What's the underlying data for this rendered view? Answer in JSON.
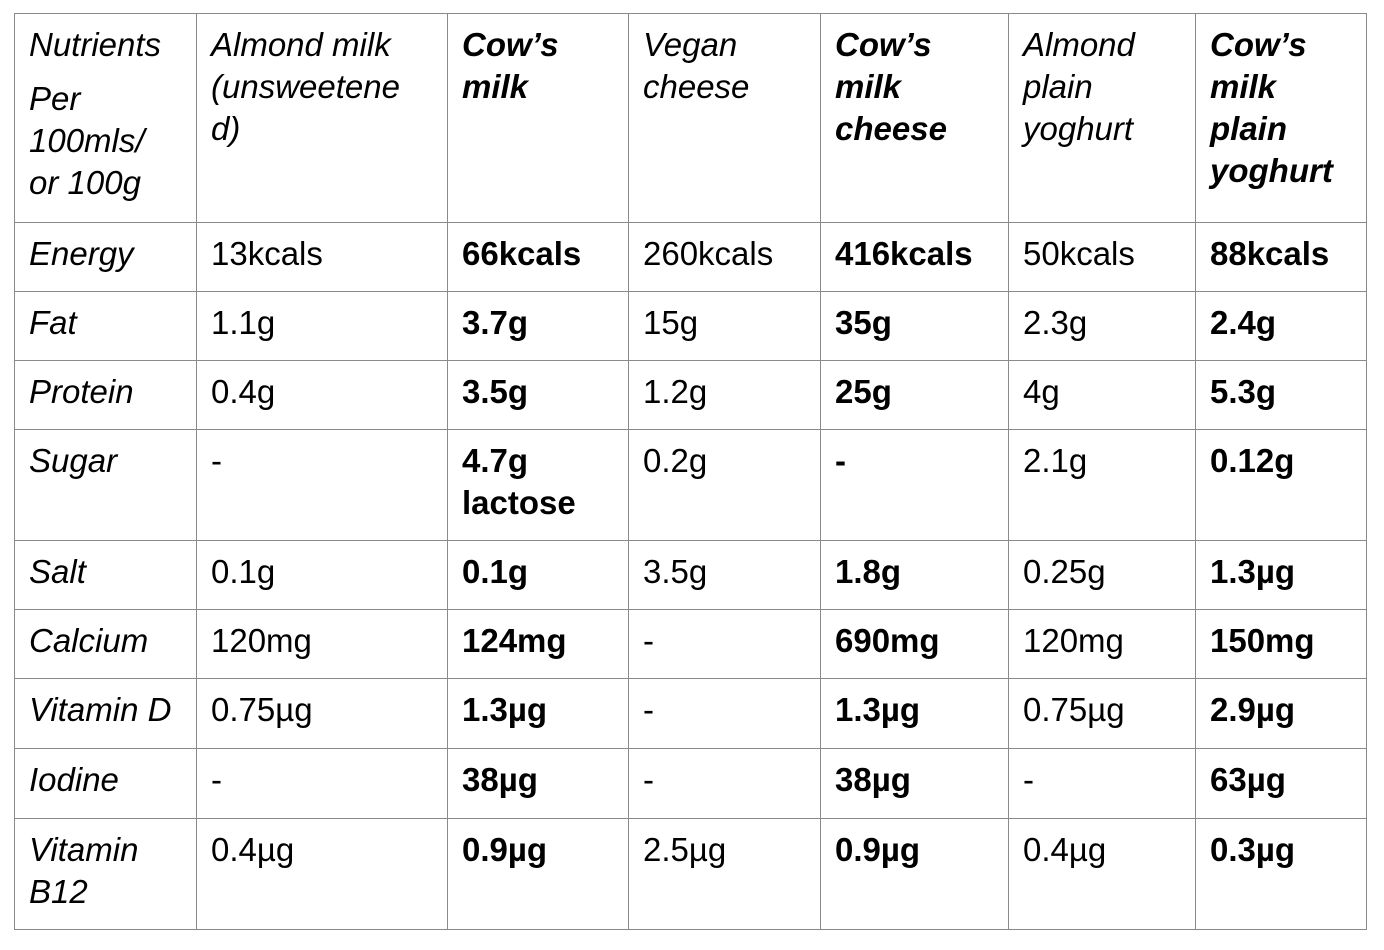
{
  "table": {
    "header": [
      {
        "lines_a": [
          "Nutrients"
        ],
        "lines_b": [
          "Per",
          "100mls/",
          "or 100g"
        ],
        "bold": false
      },
      {
        "lines_a": [
          "Almond milk",
          "(unsweetene",
          "d)"
        ],
        "bold": false
      },
      {
        "lines_a": [
          "Cow’s",
          "milk"
        ],
        "bold": true
      },
      {
        "lines_a": [
          "Vegan",
          "cheese"
        ],
        "bold": false
      },
      {
        "lines_a": [
          "Cow’s",
          "milk",
          "cheese"
        ],
        "bold": true
      },
      {
        "lines_a": [
          "Almond",
          "plain",
          "yoghurt"
        ],
        "bold": false
      },
      {
        "lines_a": [
          "Cow’s",
          "milk",
          "plain",
          "yoghurt"
        ],
        "bold": true
      }
    ],
    "rows": [
      {
        "label": [
          "Energy"
        ],
        "values": [
          [
            "13kcals"
          ],
          [
            "66kcals"
          ],
          [
            "260kcals"
          ],
          [
            "416kcals"
          ],
          [
            "50kcals"
          ],
          [
            "88kcals"
          ]
        ]
      },
      {
        "label": [
          "Fat"
        ],
        "values": [
          [
            "1.1g"
          ],
          [
            "3.7g"
          ],
          [
            "15g"
          ],
          [
            "35g"
          ],
          [
            "2.3g"
          ],
          [
            "2.4g"
          ]
        ]
      },
      {
        "label": [
          "Protein"
        ],
        "values": [
          [
            "0.4g"
          ],
          [
            "3.5g"
          ],
          [
            "1.2g"
          ],
          [
            "25g"
          ],
          [
            "4g"
          ],
          [
            "5.3g"
          ]
        ]
      },
      {
        "label": [
          "Sugar"
        ],
        "values": [
          [
            "-"
          ],
          [
            "4.7g",
            "lactose"
          ],
          [
            "0.2g"
          ],
          [
            "-"
          ],
          [
            "2.1g"
          ],
          [
            "0.12g"
          ]
        ]
      },
      {
        "label": [
          "Salt"
        ],
        "values": [
          [
            "0.1g"
          ],
          [
            "0.1g"
          ],
          [
            "3.5g"
          ],
          [
            "1.8g"
          ],
          [
            "0.25g"
          ],
          [
            "1.3µg"
          ]
        ]
      },
      {
        "label": [
          "Calcium"
        ],
        "values": [
          [
            "120mg"
          ],
          [
            "124mg"
          ],
          [
            "-"
          ],
          [
            "690mg"
          ],
          [
            "120mg"
          ],
          [
            "150mg"
          ]
        ]
      },
      {
        "label": [
          "Vitamin D"
        ],
        "values": [
          [
            "0.75µg"
          ],
          [
            "1.3µg"
          ],
          [
            "-"
          ],
          [
            "1.3µg"
          ],
          [
            "0.75µg"
          ],
          [
            "2.9µg"
          ]
        ]
      },
      {
        "label": [
          "Iodine"
        ],
        "values": [
          [
            "-"
          ],
          [
            "38µg"
          ],
          [
            "-"
          ],
          [
            "38µg"
          ],
          [
            "-"
          ],
          [
            "63µg"
          ]
        ]
      },
      {
        "label": [
          "Vitamin",
          "B12"
        ],
        "values": [
          [
            "0.4µg"
          ],
          [
            "0.9µg"
          ],
          [
            "2.5µg"
          ],
          [
            "0.9µg"
          ],
          [
            "0.4µg"
          ],
          [
            "0.3µg"
          ]
        ]
      }
    ]
  }
}
